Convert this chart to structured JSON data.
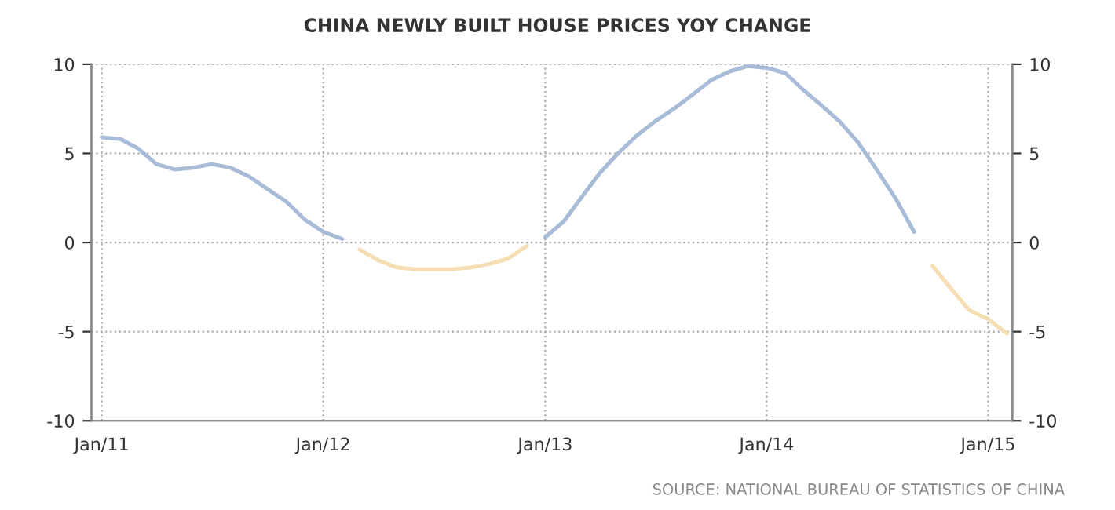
{
  "chart_data": {
    "type": "line",
    "title": "CHINA NEWLY BUILT HOUSE PRICES YOY CHANGE",
    "x": [
      "2011-01",
      "2011-02",
      "2011-03",
      "2011-04",
      "2011-05",
      "2011-06",
      "2011-07",
      "2011-08",
      "2011-09",
      "2011-10",
      "2011-11",
      "2011-12",
      "2012-01",
      "2012-02",
      "2012-03",
      "2012-04",
      "2012-05",
      "2012-06",
      "2012-07",
      "2012-08",
      "2012-09",
      "2012-10",
      "2012-11",
      "2012-12",
      "2013-01",
      "2013-02",
      "2013-03",
      "2013-04",
      "2013-05",
      "2013-06",
      "2013-07",
      "2013-08",
      "2013-09",
      "2013-10",
      "2013-11",
      "2013-12",
      "2014-01",
      "2014-02",
      "2014-03",
      "2014-04",
      "2014-05",
      "2014-06",
      "2014-07",
      "2014-08",
      "2014-09",
      "2014-10",
      "2014-11",
      "2014-12",
      "2015-01",
      "2015-02"
    ],
    "series": [
      {
        "color": "#a8bcd8",
        "values": [
          5.9,
          5.8,
          5.3,
          4.4,
          4.1,
          4.2,
          4.4,
          4.2,
          3.7,
          3.0,
          2.3,
          1.3,
          0.6,
          0.2,
          null,
          null,
          null,
          null,
          null,
          null,
          null,
          null,
          null,
          null,
          0.3,
          1.2,
          2.5,
          3.9,
          5.0,
          6.0,
          6.8,
          7.5,
          8.3,
          9.1,
          9.6,
          9.9,
          9.8,
          9.5,
          8.6,
          7.7,
          6.8,
          5.6,
          4.1,
          2.5,
          0.6,
          null,
          null,
          null,
          null,
          null
        ]
      },
      {
        "color": "#f5deb3",
        "values": [
          null,
          null,
          null,
          null,
          null,
          null,
          null,
          null,
          null,
          null,
          null,
          null,
          null,
          null,
          -0.4,
          -1.0,
          -1.4,
          -1.5,
          -1.5,
          -1.5,
          -1.4,
          -1.2,
          -0.9,
          -0.2,
          null,
          null,
          null,
          null,
          null,
          null,
          null,
          null,
          null,
          null,
          null,
          null,
          null,
          null,
          null,
          null,
          null,
          null,
          null,
          null,
          null,
          -1.3,
          -2.6,
          -3.8,
          -4.3,
          -5.1
        ]
      }
    ],
    "xlim": [
      "2010-12-15",
      "2015-02-10"
    ],
    "xticks": [
      {
        "value": "2011-01-01",
        "label": "Jan/11"
      },
      {
        "value": "2012-01-01",
        "label": "Jan/12"
      },
      {
        "value": "2013-01-01",
        "label": "Jan/13"
      },
      {
        "value": "2014-01-01",
        "label": "Jan/14"
      },
      {
        "value": "2015-01-01",
        "label": "Jan/15"
      }
    ],
    "ylim": [
      -10,
      10
    ],
    "yticks": [
      -10,
      -5,
      0,
      5,
      10
    ],
    "y2lim": [
      -10,
      10
    ],
    "y2ticks": [
      -10,
      -5,
      0,
      5,
      10
    ],
    "grid": true,
    "annotations": [
      "SOURCE: NATIONAL BUREAU OF STATISTICS OF CHINA"
    ]
  }
}
